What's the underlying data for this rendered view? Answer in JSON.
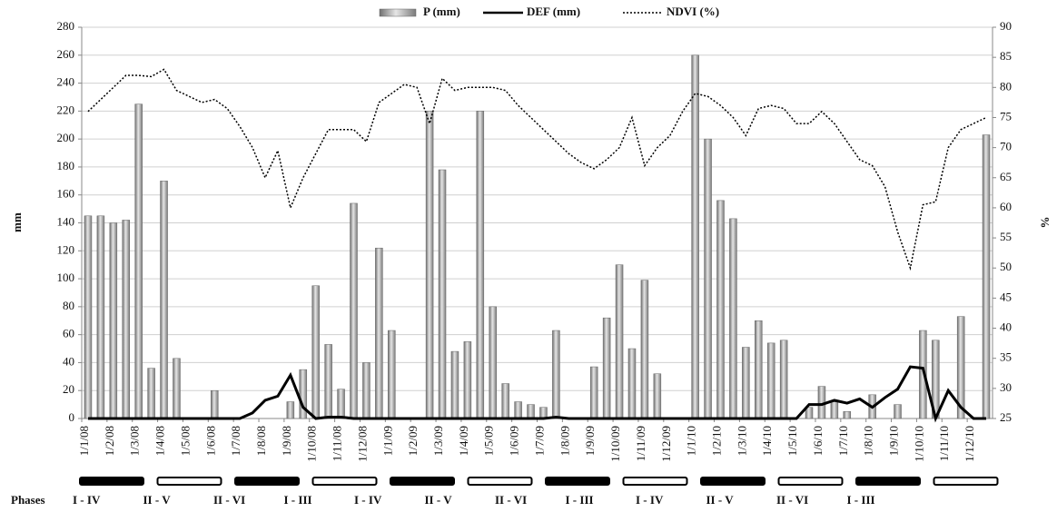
{
  "chart_data": {
    "type": "bar",
    "categories": [
      "1/1/08",
      null,
      "1/2/08",
      null,
      "1/3/08",
      null,
      "1/4/08",
      null,
      "1/5/08",
      null,
      "1/6/08",
      null,
      "1/7/08",
      null,
      "1/8/08",
      null,
      "1/9/08",
      null,
      "1/10/08",
      null,
      "1/11/08",
      null,
      "1/12/08",
      null,
      "1/1/09",
      null,
      "1/2/09",
      null,
      "1/3/09",
      null,
      "1/4/09",
      null,
      "1/5/09",
      null,
      "1/6/09",
      null,
      "1/7/09",
      null,
      "1/8/09",
      null,
      "1/9/09",
      null,
      "1/10/09",
      null,
      "1/11/09",
      null,
      "1/12/09",
      null,
      "1/1/10",
      null,
      "1/2/10",
      null,
      "1/3/10",
      null,
      "1/4/10",
      null,
      "1/5/10",
      null,
      "1/6/10",
      null,
      "1/7/10",
      null,
      "1/8/10",
      null,
      "1/9/10",
      null,
      "1/10/10",
      null,
      "1/11/10",
      null,
      "1/12/10",
      null
    ],
    "series": [
      {
        "name": "P (mm)",
        "type": "bar",
        "color": "#9a9a9a",
        "values": [
          145,
          145,
          140,
          142,
          225,
          36,
          170,
          43,
          0,
          0,
          20,
          0,
          0,
          0,
          0,
          0,
          12,
          35,
          95,
          53,
          21,
          154,
          40,
          122,
          63,
          0,
          0,
          220,
          178,
          48,
          55,
          220,
          80,
          25,
          12,
          10,
          8,
          63,
          0,
          0,
          37,
          72,
          110,
          50,
          99,
          32,
          0,
          0,
          260,
          200,
          156,
          143,
          51,
          70,
          54,
          56,
          0,
          8,
          23,
          12,
          5,
          0,
          17,
          0,
          10,
          0,
          63,
          56,
          0,
          73,
          0,
          203
        ]
      },
      {
        "name": "DEF (mm)",
        "type": "line",
        "color": "#000000",
        "values": [
          0,
          0,
          0,
          0,
          0,
          0,
          0,
          0,
          0,
          0,
          0,
          0,
          0,
          4,
          13,
          16,
          31,
          8,
          0,
          1,
          1,
          0,
          0,
          0,
          0,
          0,
          0,
          0,
          0,
          0,
          0,
          0,
          0,
          0,
          0,
          0,
          0,
          1,
          0,
          0,
          0,
          0,
          0,
          0,
          0,
          0,
          0,
          0,
          0,
          0,
          0,
          0,
          0,
          0,
          0,
          0,
          0,
          10,
          10,
          13,
          11,
          14,
          8,
          15,
          21,
          37,
          36,
          0,
          20,
          8,
          0,
          0
        ]
      },
      {
        "name": "NDVI (%)",
        "type": "line",
        "axis": "y2",
        "color": "#000000",
        "dash": true,
        "values": [
          76,
          78,
          80,
          82,
          82,
          81.8,
          83,
          79.5,
          78.5,
          77.5,
          78,
          76.5,
          73.5,
          70,
          65,
          69.5,
          60,
          65,
          69,
          73,
          73,
          73,
          71,
          77.5,
          79,
          80.5,
          80,
          74,
          81.5,
          79.5,
          80,
          80,
          80,
          79.5,
          77,
          75,
          73,
          71,
          69,
          67.5,
          66.5,
          68,
          70,
          75,
          67,
          70,
          72,
          76,
          79,
          78.5,
          77,
          75,
          72,
          76.5,
          77,
          76.5,
          74,
          74,
          76,
          74,
          71,
          68,
          67,
          63.5,
          56,
          50,
          60.5,
          61,
          70,
          73,
          74,
          75
        ]
      }
    ],
    "ylabel": "mm",
    "y2label": "%",
    "ylim": [
      0,
      280
    ],
    "yticks": [
      0,
      20,
      40,
      60,
      80,
      100,
      120,
      140,
      160,
      180,
      200,
      220,
      240,
      260,
      280
    ],
    "y2lim": [
      25,
      90
    ],
    "y2ticks": [
      25,
      30,
      35,
      40,
      45,
      50,
      55,
      60,
      65,
      70,
      75,
      80,
      85,
      90
    ],
    "phases_label": "Phases",
    "phases": [
      "I - IV",
      "II - V",
      "II - VI",
      "I - III",
      "I - IV",
      "II - V",
      "II - VI",
      "I - III",
      "I - IV",
      "II - V",
      "II - VI",
      "I - III"
    ]
  }
}
